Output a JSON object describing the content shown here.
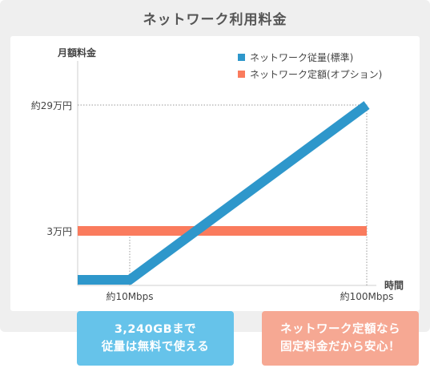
{
  "title": "ネットワーク利用料金",
  "chart_data": {
    "type": "line",
    "ylabel": "月額料金",
    "xlabel": "時間",
    "y_ticks": [
      "約29万円",
      "3万円"
    ],
    "x_ticks": [
      "約10Mbps",
      "約100Mbps"
    ],
    "legend_position": "top-right",
    "series": [
      {
        "name": "ネットワーク従量(標準)",
        "color": "#2e97cb",
        "points": [
          [
            "0",
            "low"
          ],
          [
            "約10Mbps",
            "low"
          ],
          [
            "約100Mbps",
            "約29万円"
          ]
        ]
      },
      {
        "name": "ネットワーク定額(オプション)",
        "color": "#fa7b5d",
        "points": [
          [
            "0",
            "3万円"
          ],
          [
            "約100Mbps",
            "3万円"
          ]
        ]
      }
    ]
  },
  "callouts": {
    "left": {
      "line1": "3,240GBまで",
      "line2": "従量は無料で使える"
    },
    "right": {
      "line1": "ネットワーク定額なら",
      "line2": "固定料金だから安心！"
    }
  }
}
